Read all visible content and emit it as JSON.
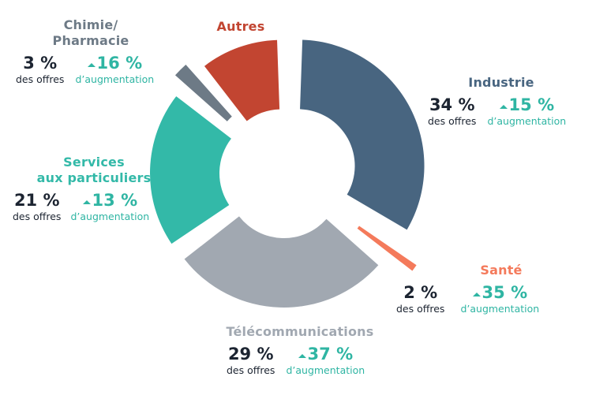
{
  "chart_data": {
    "type": "pie",
    "slices": [
      {
        "label": "Industrie",
        "share": 34,
        "growth": 15,
        "color": "#486580"
      },
      {
        "label": "Santé",
        "share": 2,
        "growth": 35,
        "color": "#f47a5b"
      },
      {
        "label": "Télécommunications",
        "share": 29,
        "growth": 37,
        "color": "#a1a8b1"
      },
      {
        "label": "Services aux particuliers",
        "share": 21,
        "growth": 13,
        "color": "#33b9a8"
      },
      {
        "label": "Chimie/ Pharmacie",
        "share": 3,
        "growth": 16,
        "color": "#6d7a86"
      },
      {
        "label": "Autres",
        "share": 11,
        "growth": null,
        "color": "#c24531"
      }
    ]
  },
  "labels": {
    "industrie": {
      "name": "Industrie",
      "share": "34 %",
      "share_caption": "des offres",
      "growth": "15 %",
      "growth_caption": "d’augmentation"
    },
    "sante": {
      "name": "Santé",
      "share": "2 %",
      "share_caption": "des offres",
      "growth": "35 %",
      "growth_caption": "d’augmentation"
    },
    "telecom": {
      "name": "Télécommunications",
      "share": "29 %",
      "share_caption": "des offres",
      "growth": "37 %",
      "growth_caption": "d’augmentation"
    },
    "services": {
      "name_line1": "Services",
      "name_line2": "aux particuliers",
      "share": "21 %",
      "share_caption": "des offres",
      "growth": "13 %",
      "growth_caption": "d’augmentation"
    },
    "chimie": {
      "name_line1": "Chimie/",
      "name_line2": "Pharmacie",
      "share": "3 %",
      "share_caption": "des offres",
      "growth": "16 %",
      "growth_caption": "d’augmentation"
    },
    "autres": {
      "name": "Autres"
    }
  }
}
